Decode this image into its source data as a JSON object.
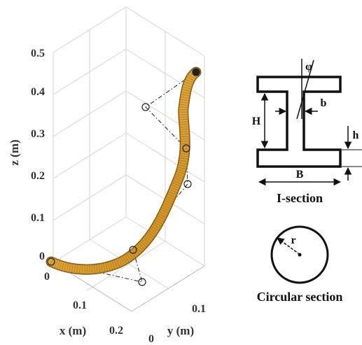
{
  "plot": {
    "z_axis_label": "z (m)",
    "x_axis_label": "x (m)",
    "y_axis_label": "y (m)",
    "z_ticks": [
      "0",
      "0.1",
      "0.2",
      "0.3",
      "0.4",
      "0.5"
    ],
    "x_ticks": [
      "0",
      "0.1",
      "0.2"
    ],
    "y_ticks": [
      "0",
      "0.1"
    ],
    "curve_color": "#E0A030",
    "control_point_count": 7
  },
  "i_section": {
    "label_phi": "φ",
    "label_H": "H",
    "label_b": "b",
    "label_h": "h",
    "label_B": "B",
    "caption": "I-section"
  },
  "circular_section": {
    "label_r": "r",
    "caption": "Circular section"
  }
}
